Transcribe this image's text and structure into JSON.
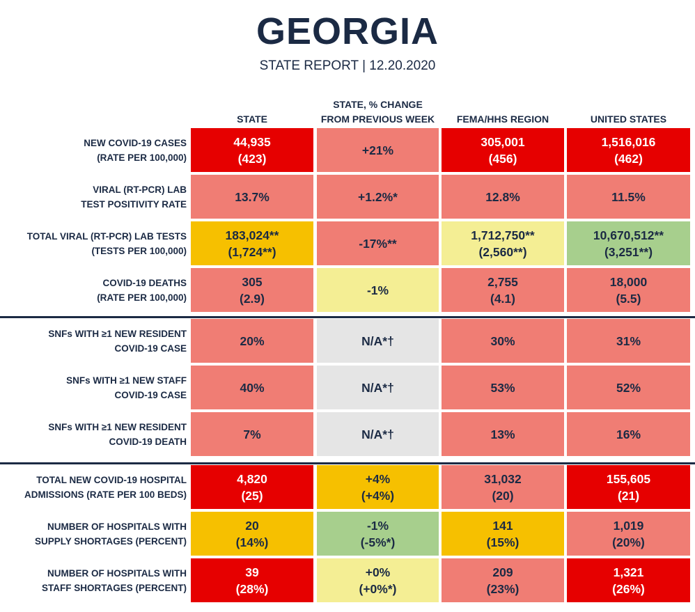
{
  "report": {
    "title": "GEORGIA",
    "subtitle": "STATE REPORT | 12.20.2020"
  },
  "columns": [
    "STATE",
    "STATE, % CHANGE\nFROM PREVIOUS WEEK",
    "FEMA/HHS REGION",
    "UNITED STATES"
  ],
  "colors": {
    "dark_red": "#e60000",
    "light_red": "#f07d74",
    "orange": "#f6c000",
    "light_yellow": "#f4ee94",
    "green": "#a7cf8d",
    "gray": "#e5e5e5",
    "navy": "#1b2a44"
  },
  "groups": [
    {
      "rows": [
        {
          "label": [
            "NEW COVID-19 CASES",
            "(RATE PER 100,000)"
          ],
          "cells": [
            {
              "lines": [
                "44,935",
                "(423)"
              ],
              "level": "dark_red"
            },
            {
              "lines": [
                "+21%"
              ],
              "level": "light_red"
            },
            {
              "lines": [
                "305,001",
                "(456)"
              ],
              "level": "dark_red"
            },
            {
              "lines": [
                "1,516,016",
                "(462)"
              ],
              "level": "dark_red"
            }
          ]
        },
        {
          "label": [
            "VIRAL (RT-PCR) LAB",
            "TEST POSITIVITY RATE"
          ],
          "cells": [
            {
              "lines": [
                "13.7%"
              ],
              "level": "light_red"
            },
            {
              "lines": [
                "+1.2%*"
              ],
              "level": "light_red"
            },
            {
              "lines": [
                "12.8%"
              ],
              "level": "light_red"
            },
            {
              "lines": [
                "11.5%"
              ],
              "level": "light_red"
            }
          ]
        },
        {
          "label": [
            "TOTAL VIRAL (RT-PCR) LAB TESTS",
            "(TESTS PER 100,000)"
          ],
          "cells": [
            {
              "lines": [
                "183,024**",
                "(1,724**)"
              ],
              "level": "orange"
            },
            {
              "lines": [
                "-17%**"
              ],
              "level": "light_red"
            },
            {
              "lines": [
                "1,712,750**",
                "(2,560**)"
              ],
              "level": "light_yellow"
            },
            {
              "lines": [
                "10,670,512**",
                "(3,251**)"
              ],
              "level": "green"
            }
          ]
        },
        {
          "label": [
            "COVID-19 DEATHS",
            "(RATE PER 100,000)"
          ],
          "cells": [
            {
              "lines": [
                "305",
                "(2.9)"
              ],
              "level": "light_red"
            },
            {
              "lines": [
                "-1%"
              ],
              "level": "light_yellow"
            },
            {
              "lines": [
                "2,755",
                "(4.1)"
              ],
              "level": "light_red"
            },
            {
              "lines": [
                "18,000",
                "(5.5)"
              ],
              "level": "light_red"
            }
          ]
        }
      ]
    },
    {
      "rows": [
        {
          "label": [
            "SNFs WITH ≥1 NEW RESIDENT",
            "COVID-19 CASE"
          ],
          "cells": [
            {
              "lines": [
                "20%"
              ],
              "level": "light_red"
            },
            {
              "lines": [
                "N/A*†"
              ],
              "level": "gray"
            },
            {
              "lines": [
                "30%"
              ],
              "level": "light_red"
            },
            {
              "lines": [
                "31%"
              ],
              "level": "light_red"
            }
          ]
        },
        {
          "label": [
            "SNFs WITH ≥1 NEW STAFF",
            "COVID-19 CASE"
          ],
          "cells": [
            {
              "lines": [
                "40%"
              ],
              "level": "light_red"
            },
            {
              "lines": [
                "N/A*†"
              ],
              "level": "gray"
            },
            {
              "lines": [
                "53%"
              ],
              "level": "light_red"
            },
            {
              "lines": [
                "52%"
              ],
              "level": "light_red"
            }
          ]
        },
        {
          "label": [
            "SNFs WITH ≥1 NEW RESIDENT",
            "COVID-19 DEATH"
          ],
          "cells": [
            {
              "lines": [
                "7%"
              ],
              "level": "light_red"
            },
            {
              "lines": [
                "N/A*†"
              ],
              "level": "gray"
            },
            {
              "lines": [
                "13%"
              ],
              "level": "light_red"
            },
            {
              "lines": [
                "16%"
              ],
              "level": "light_red"
            }
          ]
        }
      ]
    },
    {
      "rows": [
        {
          "label": [
            "TOTAL NEW COVID-19 HOSPITAL",
            "ADMISSIONS (RATE PER 100 BEDS)"
          ],
          "cells": [
            {
              "lines": [
                "4,820",
                "(25)"
              ],
              "level": "dark_red"
            },
            {
              "lines": [
                "+4%",
                "(+4%)"
              ],
              "level": "orange"
            },
            {
              "lines": [
                "31,032",
                "(20)"
              ],
              "level": "light_red"
            },
            {
              "lines": [
                "155,605",
                "(21)"
              ],
              "level": "dark_red"
            }
          ]
        },
        {
          "label": [
            "NUMBER OF HOSPITALS WITH",
            "SUPPLY SHORTAGES (PERCENT)"
          ],
          "cells": [
            {
              "lines": [
                "20",
                "(14%)"
              ],
              "level": "orange"
            },
            {
              "lines": [
                "-1%",
                "(-5%*)"
              ],
              "level": "green"
            },
            {
              "lines": [
                "141",
                "(15%)"
              ],
              "level": "orange"
            },
            {
              "lines": [
                "1,019",
                "(20%)"
              ],
              "level": "light_red"
            }
          ]
        },
        {
          "label": [
            "NUMBER OF HOSPITALS WITH",
            "STAFF SHORTAGES (PERCENT)"
          ],
          "cells": [
            {
              "lines": [
                "39",
                "(28%)"
              ],
              "level": "dark_red"
            },
            {
              "lines": [
                "+0%",
                "(+0%*)"
              ],
              "level": "light_yellow"
            },
            {
              "lines": [
                "209",
                "(23%)"
              ],
              "level": "light_red"
            },
            {
              "lines": [
                "1,321",
                "(26%)"
              ],
              "level": "dark_red"
            }
          ]
        }
      ]
    }
  ]
}
